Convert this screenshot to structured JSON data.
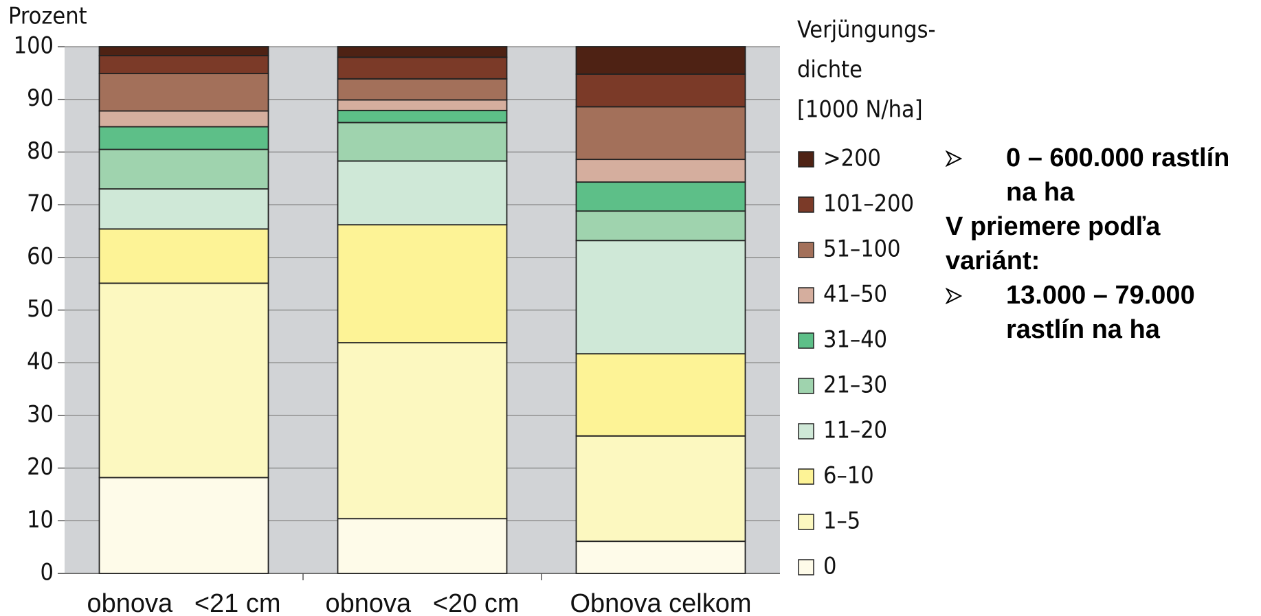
{
  "chart_data": {
    "type": "stacked_bar",
    "ylabel": "Prozent",
    "categories": [
      "obnova   <21 cm",
      "obnova   <20 cm",
      "Obnova celkom"
    ],
    "ylim": [
      0,
      100
    ],
    "yticks": [
      0,
      10,
      20,
      30,
      40,
      50,
      60,
      70,
      80,
      90,
      100
    ],
    "grid": true,
    "legend_title": [
      "Verjüngungs-",
      "dichte",
      "[1000 N/ha]"
    ],
    "series": [
      {
        "name": "0",
        "color": "#fefbe9",
        "values": [
          18.2,
          10.4,
          6.1
        ]
      },
      {
        "name": "1–5",
        "color": "#fcf8c0",
        "values": [
          36.9,
          33.4,
          20.0
        ]
      },
      {
        "name": "6–10",
        "color": "#fdf396",
        "values": [
          10.3,
          22.4,
          15.6
        ]
      },
      {
        "name": "11–20",
        "color": "#cfe8d7",
        "values": [
          7.6,
          12.1,
          21.5
        ]
      },
      {
        "name": "21–30",
        "color": "#9fd3ae",
        "values": [
          7.5,
          7.3,
          5.6
        ]
      },
      {
        "name": "31–40",
        "color": "#5dbf88",
        "values": [
          4.3,
          2.3,
          5.5
        ]
      },
      {
        "name": "41–50",
        "color": "#d5ae9e",
        "values": [
          3.0,
          2.0,
          4.3
        ]
      },
      {
        "name": "51–100",
        "color": "#a3705a",
        "values": [
          7.1,
          4.0,
          10.0
        ]
      },
      {
        "name": "101–200",
        "color": "#7b3a28",
        "values": [
          3.4,
          4.1,
          6.2
        ]
      },
      {
        "name": ">200",
        "color": "#4e2214",
        "values": [
          1.7,
          2.0,
          5.2
        ]
      }
    ]
  },
  "notes": [
    "0 – 600.000 rastlín na ha",
    "V priemere podľa variánt:",
    "13.000 – 79.000 rastlín na ha"
  ]
}
